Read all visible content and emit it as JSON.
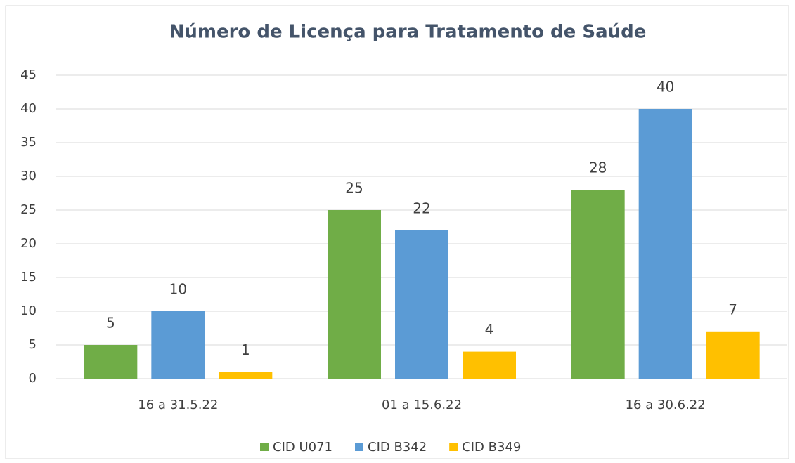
{
  "chart_data": {
    "type": "bar",
    "title": "Número de Licença para Tratamento de Saúde",
    "categories": [
      "16 a 31.5.22",
      "01 a 15.6.22",
      "16 a 30.6.22"
    ],
    "series": [
      {
        "name": "CID U071",
        "color": "#70ad47",
        "values": [
          5,
          25,
          28
        ]
      },
      {
        "name": "CID B342",
        "color": "#5b9bd5",
        "values": [
          10,
          22,
          40
        ]
      },
      {
        "name": "CID B349",
        "color": "#ffc000",
        "values": [
          1,
          4,
          7
        ]
      }
    ],
    "ylim": [
      0,
      45
    ],
    "yticks": [
      0,
      5,
      10,
      15,
      20,
      25,
      30,
      35,
      40,
      45
    ],
    "grid": true,
    "legend": "bottom"
  }
}
